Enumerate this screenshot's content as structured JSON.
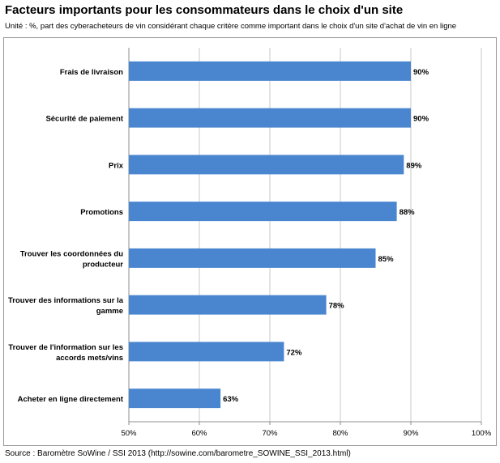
{
  "header": {
    "title": "Facteurs importants pour les consommateurs dans le choix d'un site",
    "subtitle": "Unité : %, part des cyberacheteurs de vin considérant chaque critère comme important dans le choix d'un site d'achat de vin en ligne"
  },
  "footer": {
    "source": "Source : Baromètre SoWine / SSI 2013 (http://sowine.com/barometre_SOWINE_SSI_2013.html)"
  },
  "chart_data": {
    "type": "bar",
    "orientation": "horizontal",
    "categories": [
      [
        "Frais de livraison"
      ],
      [
        "Sécurité de paiement"
      ],
      [
        "Prix"
      ],
      [
        "Promotions"
      ],
      [
        "Trouver les coordonnées du",
        "producteur"
      ],
      [
        "Trouver des informations sur la",
        "gamme"
      ],
      [
        "Trouver de l'information sur les",
        "accords mets/vins"
      ],
      [
        "Acheter en ligne directement"
      ]
    ],
    "values": [
      90,
      90,
      89,
      88,
      85,
      78,
      72,
      63
    ],
    "value_labels": [
      "90%",
      "90%",
      "89%",
      "88%",
      "85%",
      "78%",
      "72%",
      "63%"
    ],
    "xlim": [
      50,
      100
    ],
    "ticks": [
      50,
      60,
      70,
      80,
      90,
      100
    ],
    "tick_labels": [
      "50%",
      "60%",
      "70%",
      "80%",
      "90%",
      "100%"
    ],
    "bar_color": "#4a86cf",
    "grid": true,
    "grid_color": "#c8c8c8"
  }
}
